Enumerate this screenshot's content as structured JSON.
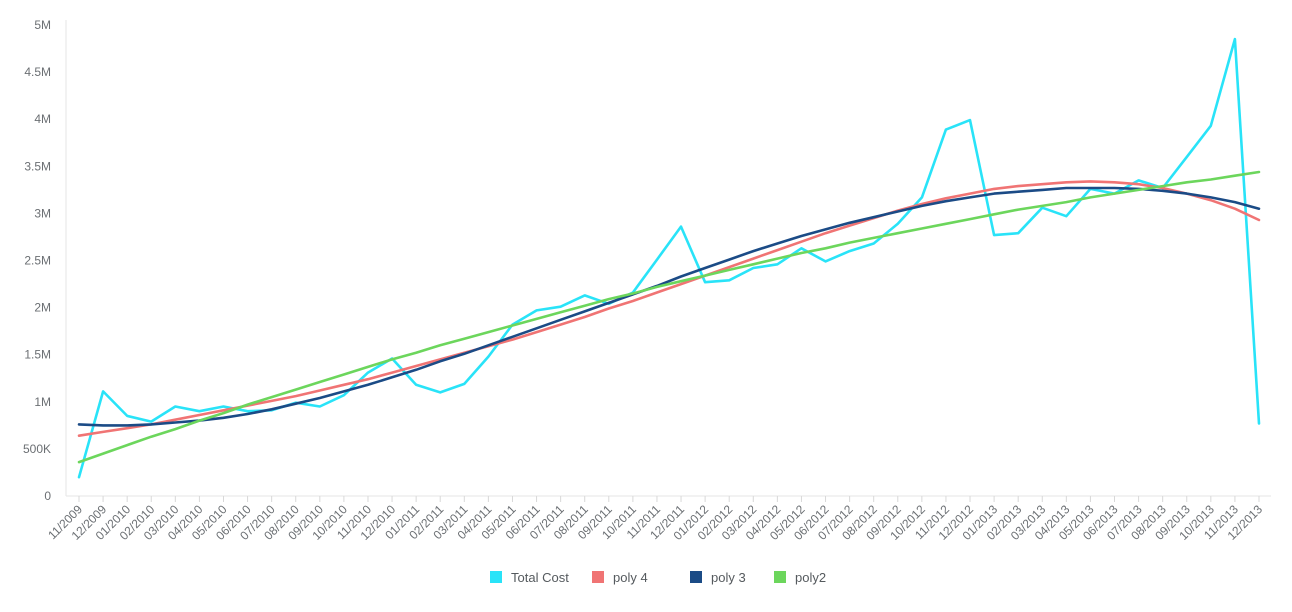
{
  "chart_data": {
    "type": "line",
    "title": "",
    "xlabel": "",
    "ylabel": "",
    "ylim": [
      0,
      5000000
    ],
    "y_ticks": [
      {
        "value": 0,
        "label": "0"
      },
      {
        "value": 500000,
        "label": "500K"
      },
      {
        "value": 1000000,
        "label": "1M"
      },
      {
        "value": 1500000,
        "label": "1.5M"
      },
      {
        "value": 2000000,
        "label": "2M"
      },
      {
        "value": 2500000,
        "label": "2.5M"
      },
      {
        "value": 3000000,
        "label": "3M"
      },
      {
        "value": 3500000,
        "label": "3.5M"
      },
      {
        "value": 4000000,
        "label": "4M"
      },
      {
        "value": 4500000,
        "label": "4.5M"
      },
      {
        "value": 5000000,
        "label": "5M"
      }
    ],
    "grid": false,
    "legend_position": "bottom-center",
    "categories": [
      "11/2009",
      "12/2009",
      "01/2010",
      "02/2010",
      "03/2010",
      "04/2010",
      "05/2010",
      "06/2010",
      "07/2010",
      "08/2010",
      "09/2010",
      "10/2010",
      "11/2010",
      "12/2010",
      "01/2011",
      "02/2011",
      "03/2011",
      "04/2011",
      "05/2011",
      "06/2011",
      "07/2011",
      "08/2011",
      "09/2011",
      "10/2011",
      "11/2011",
      "12/2011",
      "01/2012",
      "02/2012",
      "03/2012",
      "04/2012",
      "05/2012",
      "06/2012",
      "07/2012",
      "08/2012",
      "09/2012",
      "10/2012",
      "11/2012",
      "12/2012",
      "01/2013",
      "02/2013",
      "03/2013",
      "04/2013",
      "05/2013",
      "06/2013",
      "07/2013",
      "08/2013",
      "09/2013",
      "10/2013",
      "11/2013",
      "12/2013"
    ],
    "series": [
      {
        "name": "Total Cost",
        "color": "#29e3f8",
        "values": [
          200000,
          1110000,
          850000,
          790000,
          950000,
          900000,
          950000,
          900000,
          910000,
          990000,
          950000,
          1070000,
          1310000,
          1460000,
          1180000,
          1100000,
          1190000,
          1480000,
          1820000,
          1970000,
          2010000,
          2130000,
          2040000,
          2160000,
          2510000,
          2860000,
          2270000,
          2290000,
          2420000,
          2460000,
          2630000,
          2490000,
          2600000,
          2680000,
          2890000,
          3170000,
          3890000,
          3990000,
          2770000,
          2790000,
          3060000,
          2970000,
          3260000,
          3210000,
          3350000,
          3270000,
          3600000,
          3930000,
          4850000,
          770000
        ]
      },
      {
        "name": "poly 4",
        "color": "#f07474",
        "values": [
          640000,
          680000,
          720000,
          760000,
          810000,
          860000,
          910000,
          960000,
          1010000,
          1060000,
          1120000,
          1180000,
          1240000,
          1310000,
          1380000,
          1450000,
          1520000,
          1590000,
          1660000,
          1740000,
          1820000,
          1900000,
          1990000,
          2070000,
          2160000,
          2250000,
          2340000,
          2430000,
          2520000,
          2610000,
          2700000,
          2790000,
          2870000,
          2950000,
          3030000,
          3100000,
          3160000,
          3210000,
          3260000,
          3290000,
          3310000,
          3330000,
          3340000,
          3330000,
          3310000,
          3270000,
          3210000,
          3140000,
          3050000,
          2930000
        ]
      },
      {
        "name": "poly 3",
        "color": "#1b4b86",
        "values": [
          760000,
          750000,
          750000,
          760000,
          780000,
          800000,
          830000,
          870000,
          920000,
          980000,
          1040000,
          1110000,
          1180000,
          1260000,
          1340000,
          1430000,
          1510000,
          1600000,
          1690000,
          1780000,
          1870000,
          1960000,
          2050000,
          2140000,
          2230000,
          2330000,
          2420000,
          2510000,
          2600000,
          2680000,
          2760000,
          2830000,
          2900000,
          2960000,
          3020000,
          3080000,
          3130000,
          3170000,
          3210000,
          3230000,
          3250000,
          3270000,
          3270000,
          3270000,
          3260000,
          3240000,
          3210000,
          3170000,
          3120000,
          3050000
        ]
      },
      {
        "name": "poly2",
        "color": "#6cd65c",
        "values": [
          360000,
          450000,
          540000,
          630000,
          710000,
          800000,
          880000,
          970000,
          1050000,
          1130000,
          1210000,
          1290000,
          1370000,
          1450000,
          1520000,
          1600000,
          1670000,
          1740000,
          1810000,
          1880000,
          1950000,
          2020000,
          2090000,
          2150000,
          2220000,
          2280000,
          2340000,
          2400000,
          2460000,
          2520000,
          2580000,
          2630000,
          2690000,
          2740000,
          2790000,
          2840000,
          2890000,
          2940000,
          2990000,
          3040000,
          3080000,
          3120000,
          3170000,
          3210000,
          3250000,
          3290000,
          3330000,
          3360000,
          3400000,
          3440000
        ]
      }
    ]
  }
}
